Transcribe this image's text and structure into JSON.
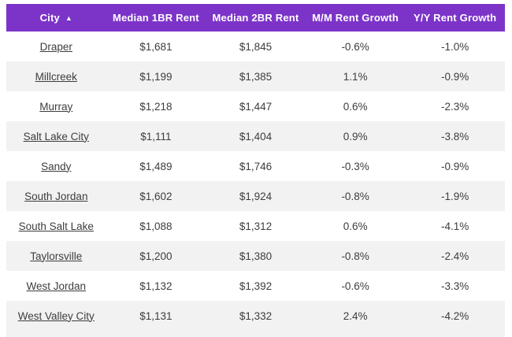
{
  "table": {
    "columns": [
      {
        "label": "City",
        "sorted": "asc"
      },
      {
        "label": "Median 1BR Rent",
        "sorted": null
      },
      {
        "label": "Median 2BR Rent",
        "sorted": null
      },
      {
        "label": "M/M Rent Growth",
        "sorted": null
      },
      {
        "label": "Y/Y Rent Growth",
        "sorted": null
      }
    ],
    "sort_arrow_glyph": "▲",
    "rows": [
      {
        "city": "Draper",
        "median_1br": "$1,681",
        "median_2br": "$1,845",
        "mm_growth": "-0.6%",
        "yy_growth": "-1.0%"
      },
      {
        "city": "Millcreek",
        "median_1br": "$1,199",
        "median_2br": "$1,385",
        "mm_growth": "1.1%",
        "yy_growth": "-0.9%"
      },
      {
        "city": "Murray",
        "median_1br": "$1,218",
        "median_2br": "$1,447",
        "mm_growth": "0.6%",
        "yy_growth": "-2.3%"
      },
      {
        "city": "Salt Lake City",
        "median_1br": "$1,111",
        "median_2br": "$1,404",
        "mm_growth": "0.9%",
        "yy_growth": "-3.8%"
      },
      {
        "city": "Sandy",
        "median_1br": "$1,489",
        "median_2br": "$1,746",
        "mm_growth": "-0.3%",
        "yy_growth": "-0.9%"
      },
      {
        "city": "South Jordan",
        "median_1br": "$1,602",
        "median_2br": "$1,924",
        "mm_growth": "-0.8%",
        "yy_growth": "-1.9%"
      },
      {
        "city": "South Salt Lake",
        "median_1br": "$1,088",
        "median_2br": "$1,312",
        "mm_growth": "0.6%",
        "yy_growth": "-4.1%"
      },
      {
        "city": "Taylorsville",
        "median_1br": "$1,200",
        "median_2br": "$1,380",
        "mm_growth": "-0.8%",
        "yy_growth": "-2.4%"
      },
      {
        "city": "West Jordan",
        "median_1br": "$1,132",
        "median_2br": "$1,392",
        "mm_growth": "-0.6%",
        "yy_growth": "-3.3%"
      },
      {
        "city": "West Valley City",
        "median_1br": "$1,131",
        "median_2br": "$1,332",
        "mm_growth": "2.4%",
        "yy_growth": "-4.2%"
      }
    ]
  },
  "chart_data": {
    "type": "table",
    "title": "",
    "columns": [
      "City",
      "Median 1BR Rent",
      "Median 2BR Rent",
      "M/M Rent Growth",
      "Y/Y Rent Growth"
    ],
    "rows": [
      [
        "Draper",
        "$1,681",
        "$1,845",
        "-0.6%",
        "-1.0%"
      ],
      [
        "Millcreek",
        "$1,199",
        "$1,385",
        "1.1%",
        "-0.9%"
      ],
      [
        "Murray",
        "$1,218",
        "$1,447",
        "0.6%",
        "-2.3%"
      ],
      [
        "Salt Lake City",
        "$1,111",
        "$1,404",
        "0.9%",
        "-3.8%"
      ],
      [
        "Sandy",
        "$1,489",
        "$1,746",
        "-0.3%",
        "-0.9%"
      ],
      [
        "South Jordan",
        "$1,602",
        "$1,924",
        "-0.8%",
        "-1.9%"
      ],
      [
        "South Salt Lake",
        "$1,088",
        "$1,312",
        "0.6%",
        "-4.1%"
      ],
      [
        "Taylorsville",
        "$1,200",
        "$1,380",
        "-0.8%",
        "-2.4%"
      ],
      [
        "West Jordan",
        "$1,132",
        "$1,392",
        "-0.6%",
        "-3.3%"
      ],
      [
        "West Valley City",
        "$1,131",
        "$1,332",
        "2.4%",
        "-4.2%"
      ]
    ],
    "sort": {
      "column": "City",
      "direction": "ascending"
    },
    "layout_hints": {
      "striped": true,
      "header_style": "solid purple",
      "alignment": "center"
    }
  },
  "colors": {
    "header_bg": "#7c34c8",
    "header_text": "#ffffff",
    "row_alt_bg": "#f2f2f2",
    "row_bg": "#ffffff",
    "cell_text": "#3d3d3d"
  }
}
